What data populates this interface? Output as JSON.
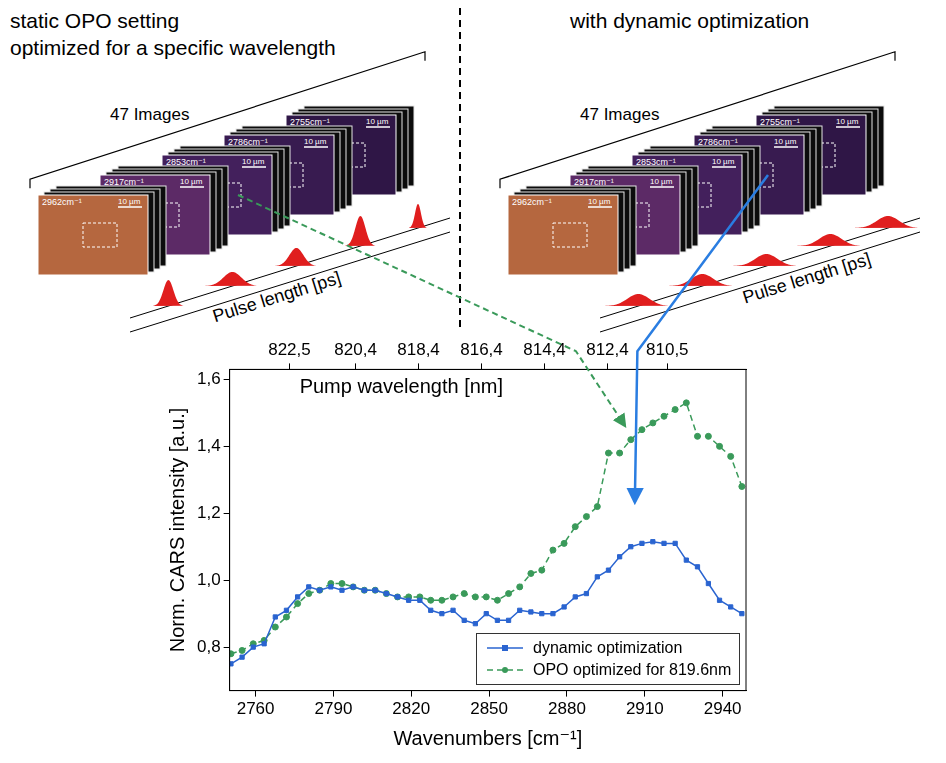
{
  "panels": [
    {
      "title": [
        "static OPO setting",
        "optimized for a specific wavelength"
      ],
      "stack_label": "47 Images",
      "image_labels": [
        "2962cm⁻¹",
        "2917cm⁻¹",
        "2853cm⁻¹",
        "2786cm⁻¹",
        "2755cm⁻¹"
      ],
      "scale_bar": "10 µm",
      "pulse_axis": "Pulse length [ps]"
    },
    {
      "title": [
        "with dynamic optimization"
      ],
      "stack_label": "47 Images",
      "image_labels": [
        "2962cm⁻¹",
        "2917cm⁻¹",
        "2853cm⁻¹",
        "2786cm⁻¹",
        "2755cm⁻¹"
      ],
      "scale_bar": "10 µm",
      "pulse_axis": "Pulse length [ps]"
    }
  ],
  "chart_data": {
    "type": "line",
    "x_label": "Wavenumbers [cm⁻¹]",
    "y_label": "Norm. CARS intensity [a.u.]",
    "x2_label": "Pump wavelength [nm]",
    "xlim": [
      2750,
      2949
    ],
    "xticks": [
      2760,
      2790,
      2820,
      2850,
      2880,
      2910,
      2940
    ],
    "x2lim": [
      824.4,
      808.0
    ],
    "x2ticks": [
      {
        "value": 822.5,
        "label": "822,5"
      },
      {
        "value": 820.4,
        "label": "820,4"
      },
      {
        "value": 818.4,
        "label": "818,4"
      },
      {
        "value": 816.4,
        "label": "816,4"
      },
      {
        "value": 814.4,
        "label": "814,4"
      },
      {
        "value": 812.4,
        "label": "812,4"
      },
      {
        "value": 810.5,
        "label": "810,5"
      }
    ],
    "ylim": [
      0.67,
      1.63
    ],
    "yticks": [
      {
        "value": 0.8,
        "label": "0,8"
      },
      {
        "value": 1.0,
        "label": "1,0"
      },
      {
        "value": 1.2,
        "label": "1,2"
      },
      {
        "value": 1.4,
        "label": "1,4"
      },
      {
        "value": 1.6,
        "label": "1,6"
      }
    ],
    "grid": false,
    "legend": "lower right",
    "x": [
      2750.5,
      2754.8,
      2759.1,
      2763.3,
      2767.6,
      2771.9,
      2776.2,
      2780.5,
      2784.7,
      2789.0,
      2793.3,
      2797.6,
      2801.9,
      2806.1,
      2810.4,
      2814.7,
      2819.0,
      2823.3,
      2827.5,
      2831.8,
      2836.1,
      2840.4,
      2844.7,
      2848.9,
      2853.2,
      2857.5,
      2861.8,
      2866.1,
      2870.3,
      2874.6,
      2878.9,
      2883.2,
      2887.5,
      2891.7,
      2896.0,
      2900.3,
      2904.6,
      2908.9,
      2913.1,
      2917.4,
      2921.7,
      2926.0,
      2930.3,
      2934.5,
      2938.8,
      2943.1,
      2947.4
    ],
    "series": [
      {
        "name": "dynamic optimization",
        "color": "#2a64d0",
        "marker": "square",
        "line_style": "solid",
        "values": [
          0.75,
          0.77,
          0.8,
          0.81,
          0.89,
          0.91,
          0.95,
          0.98,
          0.97,
          0.98,
          0.97,
          0.98,
          0.97,
          0.97,
          0.96,
          0.95,
          0.94,
          0.94,
          0.91,
          0.9,
          0.91,
          0.88,
          0.87,
          0.9,
          0.88,
          0.88,
          0.91,
          0.905,
          0.9,
          0.9,
          0.92,
          0.95,
          0.96,
          1.01,
          1.03,
          1.07,
          1.1,
          1.11,
          1.115,
          1.11,
          1.11,
          1.06,
          1.04,
          0.99,
          0.94,
          0.92,
          0.9
        ]
      },
      {
        "name": "OPO optimized for 819.6nm",
        "color": "#3a9a5a",
        "marker": "circle",
        "line_style": "dashed",
        "values": [
          0.78,
          0.79,
          0.81,
          0.82,
          0.86,
          0.89,
          0.93,
          0.96,
          0.97,
          0.99,
          0.99,
          0.98,
          0.97,
          0.97,
          0.96,
          0.95,
          0.95,
          0.95,
          0.94,
          0.94,
          0.95,
          0.96,
          0.95,
          0.95,
          0.94,
          0.96,
          0.98,
          1.02,
          1.03,
          1.09,
          1.11,
          1.16,
          1.19,
          1.22,
          1.38,
          1.38,
          1.42,
          1.45,
          1.47,
          1.49,
          1.51,
          1.53,
          1.43,
          1.43,
          1.4,
          1.37,
          1.28
        ]
      }
    ]
  }
}
